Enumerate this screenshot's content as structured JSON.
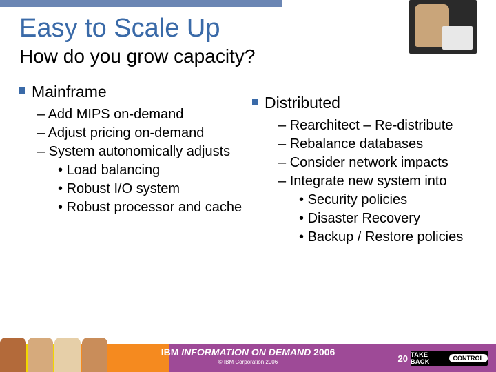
{
  "colors": {
    "accent": "#3a6aa8",
    "topbar": "#6b86b4",
    "footer_gradient": [
      "#f2d600",
      "#f58a1f",
      "#9e4a97"
    ],
    "text": "#000000"
  },
  "title": "Easy to Scale Up",
  "subtitle": "How do you grow capacity?",
  "left": {
    "heading": "Mainframe",
    "items": [
      {
        "text": "Add MIPS on-demand"
      },
      {
        "text": "Adjust pricing on-demand"
      },
      {
        "text": "System autonomically adjusts",
        "sub": [
          "Load balancing",
          "Robust I/O system",
          "Robust processor and cache"
        ]
      }
    ]
  },
  "right": {
    "heading": "Distributed",
    "items": [
      {
        "text": "Rearchitect – Re-distribute"
      },
      {
        "text": "Rebalance databases"
      },
      {
        "text": "Consider network impacts"
      },
      {
        "text": "Integrate new system into",
        "sub": [
          "Security policies",
          "Disaster Recovery",
          "Backup / Restore policies"
        ]
      }
    ]
  },
  "footer": {
    "logo_prefix": "IBM ",
    "logo_main": "INFORMATION ON DEMAND",
    "logo_year": " 2006",
    "copyright": "© IBM Corporation 2006",
    "page_number": "20",
    "takeback_a": "TAKE BACK",
    "takeback_b": "CONTROL"
  }
}
